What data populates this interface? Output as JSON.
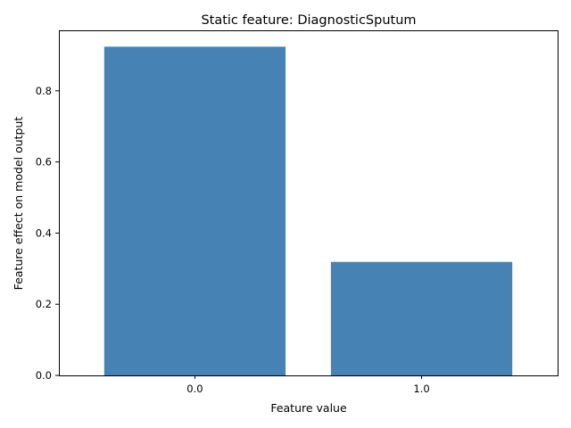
{
  "chart_data": {
    "type": "bar",
    "title": "Static feature: DiagnosticSputum",
    "xlabel": "Feature value",
    "ylabel": "Feature effect on model output",
    "categories": [
      "0.0",
      "1.0"
    ],
    "values": [
      0.924,
      0.319
    ],
    "ylim": [
      0,
      0.97
    ],
    "yticks": [
      0.0,
      0.2,
      0.4,
      0.6,
      0.8
    ],
    "ytick_labels": [
      "0.0",
      "0.2",
      "0.4",
      "0.6",
      "0.8"
    ],
    "bar_color": "#4682b4",
    "grid": false,
    "legend": false
  }
}
